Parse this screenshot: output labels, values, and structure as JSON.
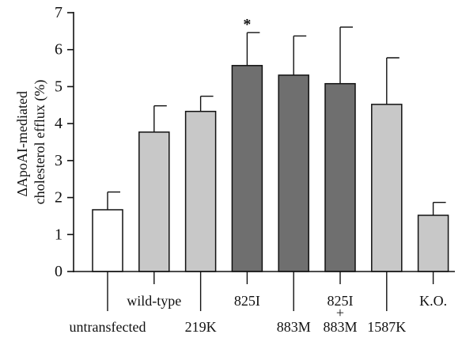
{
  "chart_data": {
    "type": "bar",
    "title": "",
    "ylabel_lines": [
      "ΔApoAI-mediated",
      "cholesterol efflux (%)"
    ],
    "xlabel": "",
    "ylim": [
      0,
      7
    ],
    "yticks": [
      0,
      1,
      2,
      3,
      4,
      5,
      6,
      7
    ],
    "grid": false,
    "categories": [
      "untransfected",
      "wild-type",
      "219K",
      "825I",
      "883M",
      "825I + 883M",
      "1587K",
      "K.O."
    ],
    "values": [
      1.67,
      3.77,
      4.33,
      5.57,
      5.31,
      5.08,
      4.52,
      1.52
    ],
    "errors": [
      0.48,
      0.71,
      0.41,
      0.89,
      1.06,
      1.53,
      1.26,
      0.35
    ],
    "colors": [
      "#ffffff",
      "#c8c8c8",
      "#c8c8c8",
      "#6f6f6f",
      "#6f6f6f",
      "#6f6f6f",
      "#c8c8c8",
      "#c8c8c8"
    ],
    "annotations": [
      {
        "category": "825I",
        "text": "*"
      }
    ],
    "category_labels_upper": [
      "wild-type",
      "825I",
      "825I",
      "K.O."
    ],
    "category_labels_lower": [
      "untransfected",
      "219K",
      "883M",
      "883M",
      "1587K"
    ],
    "combo_plus": "+"
  }
}
